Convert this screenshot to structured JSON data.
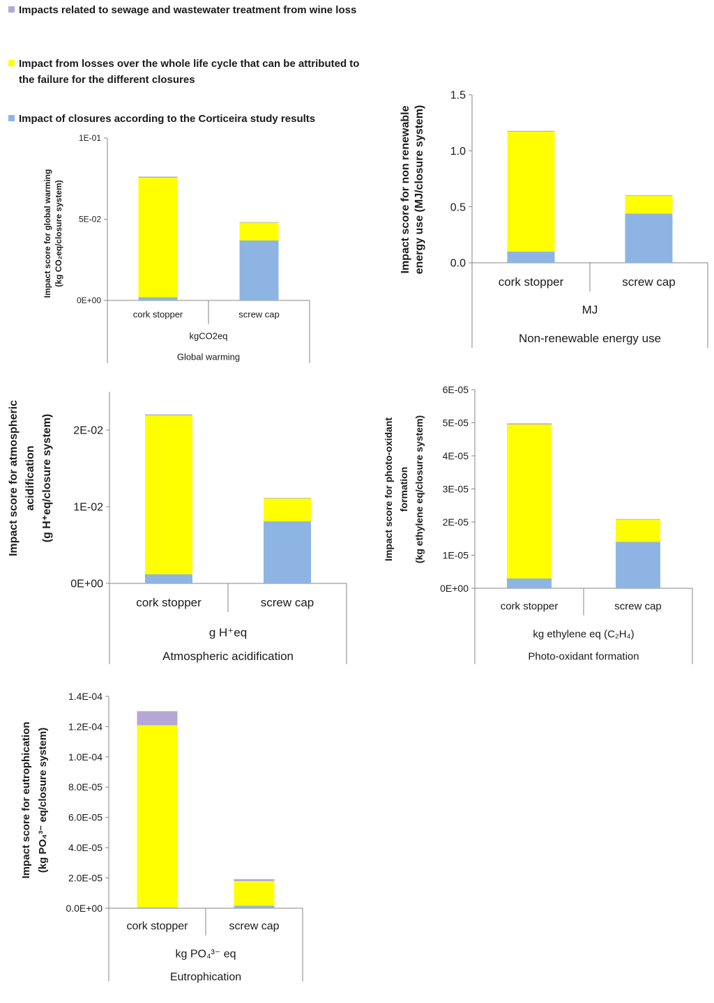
{
  "legend": [
    {
      "key": "sewage",
      "label": "Impacts related to sewage and wastewater treatment from wine loss",
      "color": "#B4A7D6"
    },
    {
      "key": "losses",
      "label": "Impact from losses over the whole life cycle that can be attributed to the failure for the different closures",
      "color": "#FFFF00"
    },
    {
      "key": "closures",
      "label": "Impact of closures according to the Corticeira study results",
      "color": "#8EB4E3"
    }
  ],
  "chart_data": [
    {
      "id": "global-warming",
      "type": "bar",
      "stacked": true,
      "title": "Global warming",
      "unit_label": "kgCO2eq",
      "ylabel_lines": [
        "Impact score for global warming",
        "(kg CO₂eq/closure system)"
      ],
      "categories": [
        "cork stopper",
        "screw cap"
      ],
      "ylim": [
        0,
        0.1
      ],
      "yticks": [
        {
          "v": 0,
          "label": "0E+00"
        },
        {
          "v": 0.05,
          "label": "5E-02"
        },
        {
          "v": 0.1,
          "label": "1E-01"
        }
      ],
      "series": [
        {
          "name": "Impact of closures according to the Corticeira study results",
          "values": [
            0.002,
            0.037
          ]
        },
        {
          "name": "Impact from losses over the whole life cycle that can be attributed to the failure for the different closures",
          "values": [
            0.0735,
            0.011
          ]
        },
        {
          "name": "Impacts related to sewage and wastewater treatment from wine loss",
          "values": [
            0.0005,
            0
          ]
        }
      ]
    },
    {
      "id": "non-renewable-energy",
      "type": "bar",
      "stacked": true,
      "title": "Non-renewable energy use",
      "unit_label": "MJ",
      "ylabel_lines": [
        "Impact score for non renewable",
        "energy use  (MJ/closure system)"
      ],
      "categories": [
        "cork stopper",
        "screw cap"
      ],
      "ylim": [
        0,
        1.5
      ],
      "yticks": [
        {
          "v": 0,
          "label": "0.0"
        },
        {
          "v": 0.5,
          "label": "0.5"
        },
        {
          "v": 1.0,
          "label": "1.0"
        },
        {
          "v": 1.5,
          "label": "1.5"
        }
      ],
      "series": [
        {
          "name": "Impact of closures according to the Corticeira study results",
          "values": [
            0.1,
            0.44
          ]
        },
        {
          "name": "Impact from losses over the whole life cycle that can be attributed to the failure for the different closures",
          "values": [
            1.07,
            0.16
          ]
        },
        {
          "name": "Impacts related to sewage and wastewater treatment from wine loss",
          "values": [
            0.005,
            0
          ]
        }
      ]
    },
    {
      "id": "atmospheric-acidification",
      "type": "bar",
      "stacked": true,
      "title": "Atmospheric acidification",
      "unit_label": "g H⁺eq",
      "ylabel_lines": [
        "Impact score for atmospheric",
        "acidification",
        "(g H⁺eq/closure system)"
      ],
      "categories": [
        "cork stopper",
        "screw cap"
      ],
      "ylim": [
        0,
        0.025
      ],
      "yticks": [
        {
          "v": 0,
          "label": "0E+00"
        },
        {
          "v": 0.01,
          "label": "1E-02"
        },
        {
          "v": 0.02,
          "label": "2E-02"
        }
      ],
      "series": [
        {
          "name": "Impact of closures according to the Corticeira study results",
          "values": [
            0.0012,
            0.0081
          ]
        },
        {
          "name": "Impact from losses over the whole life cycle that can be attributed to the failure for the different closures",
          "values": [
            0.0207,
            0.003
          ]
        },
        {
          "name": "Impacts related to sewage and wastewater treatment from wine loss",
          "values": [
            0.0001,
            0
          ]
        }
      ]
    },
    {
      "id": "photo-oxidant-formation",
      "type": "bar",
      "stacked": true,
      "title": "Photo-oxidant formation",
      "unit_label": "kg ethylene  eq (C₂H₄)",
      "ylabel_lines": [
        "Impact score for photo-oxidant",
        "formation",
        "(kg ethylene  eq/closure system)"
      ],
      "categories": [
        "cork stopper",
        "screw cap"
      ],
      "ylim": [
        0,
        6e-05
      ],
      "yticks": [
        {
          "v": 0,
          "label": "0E+00"
        },
        {
          "v": 1e-05,
          "label": "1E-05"
        },
        {
          "v": 2e-05,
          "label": "2E-05"
        },
        {
          "v": 3e-05,
          "label": "3E-05"
        },
        {
          "v": 4e-05,
          "label": "4E-05"
        },
        {
          "v": 5e-05,
          "label": "5E-05"
        },
        {
          "v": 6e-05,
          "label": "6E-05"
        }
      ],
      "series": [
        {
          "name": "Impact of closures according to the Corticeira study results",
          "values": [
            3e-06,
            1.4e-05
          ]
        },
        {
          "name": "Impact from losses over the whole life cycle that can be attributed to the failure for the different closures",
          "values": [
            4.65e-05,
            6.8e-06
          ]
        },
        {
          "name": "Impacts related to sewage and wastewater treatment from wine loss",
          "values": [
            2e-07,
            0
          ]
        }
      ]
    },
    {
      "id": "eutrophication",
      "type": "bar",
      "stacked": true,
      "title": "Eutrophication",
      "unit_label": "kg PO₄³⁻ eq",
      "ylabel_lines": [
        "Impact score for eutrophication",
        "(kg PO₄³⁻ eq/closure system)"
      ],
      "categories": [
        "cork stopper",
        "screw cap"
      ],
      "ylim": [
        0,
        0.00014
      ],
      "yticks": [
        {
          "v": 0,
          "label": "0.0E+00"
        },
        {
          "v": 2e-05,
          "label": "2.0E-05"
        },
        {
          "v": 4e-05,
          "label": "4.0E-05"
        },
        {
          "v": 6e-05,
          "label": "6.0E-05"
        },
        {
          "v": 8e-05,
          "label": "8.0E-05"
        },
        {
          "v": 0.0001,
          "label": "1.0E-04"
        },
        {
          "v": 0.00012,
          "label": "1.2E-04"
        },
        {
          "v": 0.00014,
          "label": "1.4E-04"
        }
      ],
      "series": [
        {
          "name": "Impact of closures according to the Corticeira study results",
          "values": [
            5e-07,
            1.5e-06
          ]
        },
        {
          "name": "Impact from losses over the whole life cycle that can be attributed to the failure for the different closures",
          "values": [
            0.0001205,
            1.65e-05
          ]
        },
        {
          "name": "Impacts related to sewage and wastewater treatment from wine loss",
          "values": [
            9e-06,
            1e-06
          ]
        }
      ]
    }
  ]
}
